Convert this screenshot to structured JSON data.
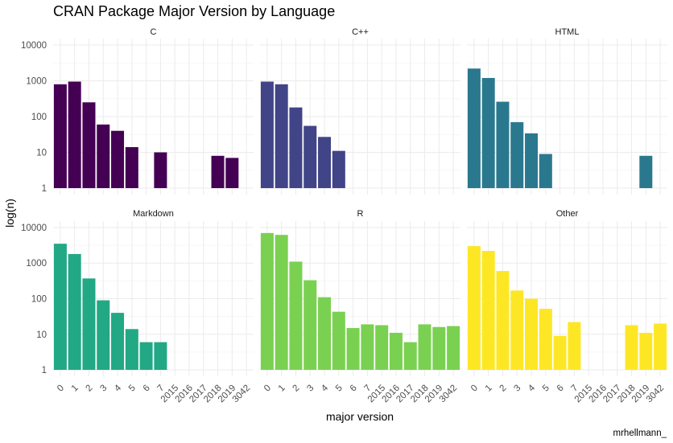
{
  "chart_data": {
    "type": "bar",
    "title": "CRAN Package Major Version by Language",
    "xlabel": "major version",
    "ylabel": "log(n)",
    "caption": "mrhellmann_",
    "y_scale": "log10",
    "ylim": [
      1,
      10000
    ],
    "y_ticks": [
      "1",
      "10",
      "100",
      "1000",
      "10000"
    ],
    "grid": true,
    "categories": [
      "0",
      "1",
      "2",
      "3",
      "4",
      "5",
      "6",
      "7",
      "2015",
      "2016",
      "2017",
      "2018",
      "2019",
      "3042"
    ],
    "facets": [
      {
        "name": "C",
        "color": "#440154",
        "values": [
          800,
          950,
          250,
          60,
          40,
          14,
          null,
          10,
          null,
          null,
          null,
          8,
          7,
          null
        ]
      },
      {
        "name": "C++",
        "color": "#414487",
        "values": [
          950,
          800,
          180,
          55,
          27,
          11,
          null,
          null,
          null,
          null,
          null,
          null,
          null,
          null
        ]
      },
      {
        "name": "HTML",
        "color": "#2a788e",
        "values": [
          2200,
          1200,
          260,
          70,
          34,
          9,
          null,
          null,
          null,
          null,
          null,
          null,
          8,
          null
        ]
      },
      {
        "name": "Markdown",
        "color": "#22a884",
        "values": [
          3500,
          1800,
          370,
          90,
          40,
          14,
          6,
          6,
          null,
          null,
          null,
          null,
          null,
          null
        ]
      },
      {
        "name": "R",
        "color": "#7ad151",
        "values": [
          7000,
          6200,
          1100,
          330,
          110,
          43,
          15,
          19,
          18,
          11,
          6,
          19,
          16,
          17
        ]
      },
      {
        "name": "Other",
        "color": "#fde725",
        "values": [
          3000,
          2200,
          600,
          170,
          100,
          52,
          9,
          22,
          null,
          null,
          null,
          18,
          11,
          20
        ]
      }
    ]
  }
}
